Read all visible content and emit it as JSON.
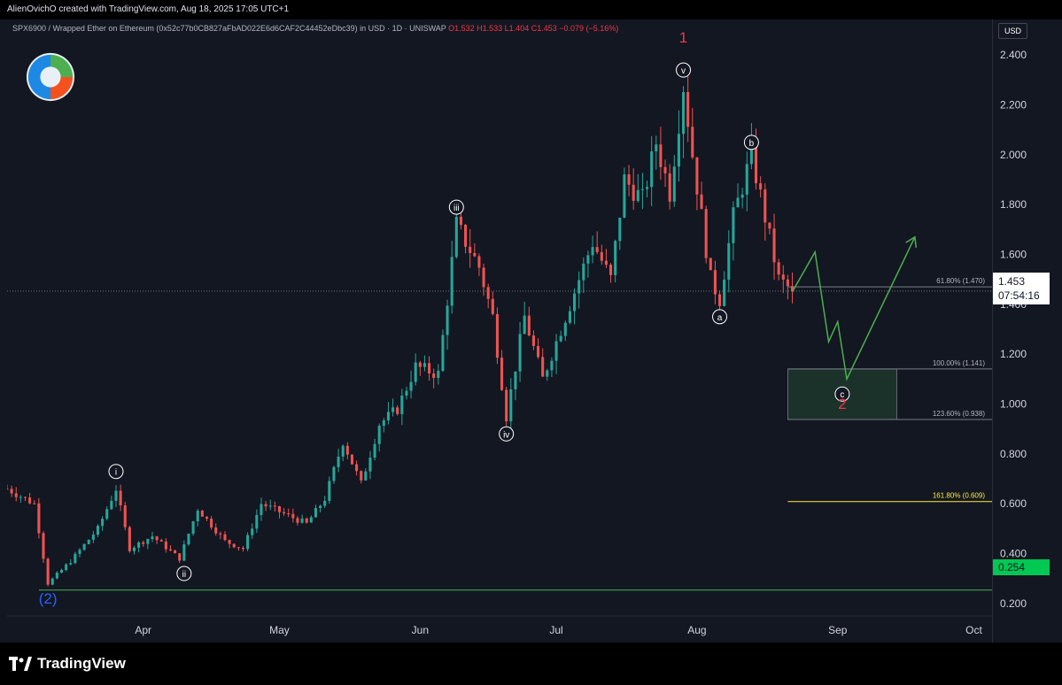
{
  "header": {
    "attribution": "AlienOvichO created with TradingView.com, Aug 18, 2025 17:05 UTC+1"
  },
  "legend": {
    "symbol": "SPX6900 / Wrapped Ether on Ethereum (0x52c77b0CB827aFbAD022E6d6CAF2C44452eDbc39) in USD · 1D · UNISWAP",
    "ohlc": "O1.532  H1.533  L1.404  C1.453  −0.079 (−5.16%)"
  },
  "price_axis": {
    "currency": "USD",
    "last_price": "1.453",
    "countdown": "07:54:16",
    "low_level": "0.254"
  },
  "brand": {
    "name": "TradingView"
  },
  "colors": {
    "background": "#131722",
    "up": "#26a69a",
    "down": "#ef5350",
    "wave_label_red": "#f23645",
    "wave_label_blue": "#2962ff",
    "projection": "#4caf50",
    "fib_161": "#ffeb3b",
    "support_line": "#4caf50",
    "target_zone": "#1e3a2e"
  },
  "chart_data": {
    "type": "candlestick",
    "y_scale": "linear",
    "ylim": [
      0.15,
      2.5
    ],
    "y_ticks": [
      "0.200",
      "0.400",
      "0.600",
      "0.800",
      "1.000",
      "1.200",
      "1.400",
      "1.600",
      "1.800",
      "2.000",
      "2.200",
      "2.400"
    ],
    "y_tick_values": [
      0.2,
      0.4,
      0.6,
      0.8,
      1.0,
      1.2,
      1.4,
      1.6,
      1.8,
      2.0,
      2.2,
      2.4
    ],
    "x_ticks": [
      "Apr",
      "May",
      "Jun",
      "Jul",
      "Aug",
      "Sep",
      "Oct"
    ],
    "x_tick_days": [
      26,
      56,
      87,
      117,
      148,
      179,
      209
    ],
    "x_range_days": [
      -4,
      213
    ],
    "waypoints": [
      {
        "day": -4,
        "price": 0.66
      },
      {
        "day": 2,
        "price": 0.6
      },
      {
        "day": 5,
        "price": 0.28
      },
      {
        "day": 10,
        "price": 0.37
      },
      {
        "day": 16,
        "price": 0.5
      },
      {
        "day": 20,
        "price": 0.66
      },
      {
        "day": 23,
        "price": 0.42
      },
      {
        "day": 28,
        "price": 0.47
      },
      {
        "day": 34,
        "price": 0.38
      },
      {
        "day": 38,
        "price": 0.58
      },
      {
        "day": 44,
        "price": 0.45
      },
      {
        "day": 48,
        "price": 0.42
      },
      {
        "day": 52,
        "price": 0.6
      },
      {
        "day": 62,
        "price": 0.52
      },
      {
        "day": 66,
        "price": 0.62
      },
      {
        "day": 70,
        "price": 0.85
      },
      {
        "day": 74,
        "price": 0.68
      },
      {
        "day": 78,
        "price": 0.92
      },
      {
        "day": 82,
        "price": 0.98
      },
      {
        "day": 86,
        "price": 1.15
      },
      {
        "day": 91,
        "price": 1.12
      },
      {
        "day": 95,
        "price": 1.72
      },
      {
        "day": 100,
        "price": 1.55
      },
      {
        "day": 103,
        "price": 1.35
      },
      {
        "day": 106,
        "price": 0.95
      },
      {
        "day": 110,
        "price": 1.35
      },
      {
        "day": 114,
        "price": 1.1
      },
      {
        "day": 121,
        "price": 1.45
      },
      {
        "day": 125,
        "price": 1.65
      },
      {
        "day": 129,
        "price": 1.5
      },
      {
        "day": 132,
        "price": 1.9
      },
      {
        "day": 136,
        "price": 1.82
      },
      {
        "day": 139,
        "price": 2.05
      },
      {
        "day": 142,
        "price": 1.85
      },
      {
        "day": 145,
        "price": 2.28
      },
      {
        "day": 147,
        "price": 2.0
      },
      {
        "day": 151,
        "price": 1.5
      },
      {
        "day": 153,
        "price": 1.42
      },
      {
        "day": 156,
        "price": 1.75
      },
      {
        "day": 160,
        "price": 2.0
      },
      {
        "day": 163,
        "price": 1.75
      },
      {
        "day": 166,
        "price": 1.5
      },
      {
        "day": 169,
        "price": 1.453
      }
    ],
    "last_close": 1.453,
    "wave_labels": [
      {
        "label": "i",
        "day": 20,
        "price": 0.68,
        "style": "circle",
        "pos": "above"
      },
      {
        "label": "ii",
        "day": 35,
        "price": 0.37,
        "style": "circle",
        "pos": "below"
      },
      {
        "label": "iii",
        "day": 95,
        "price": 1.74,
        "style": "circle",
        "pos": "above"
      },
      {
        "label": "iv",
        "day": 106,
        "price": 0.93,
        "style": "circle",
        "pos": "below"
      },
      {
        "label": "v",
        "day": 145,
        "price": 2.29,
        "style": "circle",
        "pos": "above"
      },
      {
        "label": "a",
        "day": 153,
        "price": 1.4,
        "style": "circle",
        "pos": "below"
      },
      {
        "label": "b",
        "day": 160,
        "price": 2.0,
        "style": "circle",
        "pos": "above"
      },
      {
        "label": "c",
        "day": 180,
        "price": 1.09,
        "style": "circle",
        "pos": "below"
      },
      {
        "label": "1",
        "day": 145,
        "price": 2.45,
        "style": "red-large"
      },
      {
        "label": "2",
        "day": 180,
        "price": 0.98,
        "style": "red-large"
      },
      {
        "label": "(2)",
        "day": 5,
        "price": 0.2,
        "style": "blue-large"
      }
    ],
    "fib_levels": [
      {
        "label": "61.80% (1.470)",
        "value": 1.47,
        "color": "#787b86",
        "day_start": 168
      },
      {
        "label": "100.00% (1.141)",
        "value": 1.141,
        "color": "#787b86",
        "day_start": 168
      },
      {
        "label": "123.60% (0.938)",
        "value": 0.938,
        "color": "#787b86",
        "day_start": 168
      },
      {
        "label": "161.80% (0.609)",
        "value": 0.609,
        "color": "#ffeb3b",
        "day_start": 168
      }
    ],
    "target_zone": {
      "day_start": 168,
      "day_end": 192,
      "top": 1.141,
      "bottom": 0.938
    },
    "support_line": {
      "value": 0.254,
      "day_start": 3
    },
    "projection_path": [
      {
        "day": 169,
        "price": 1.45
      },
      {
        "day": 174,
        "price": 1.61
      },
      {
        "day": 177,
        "price": 1.25
      },
      {
        "day": 179,
        "price": 1.33
      },
      {
        "day": 181,
        "price": 1.1
      },
      {
        "day": 196,
        "price": 1.67
      }
    ]
  }
}
